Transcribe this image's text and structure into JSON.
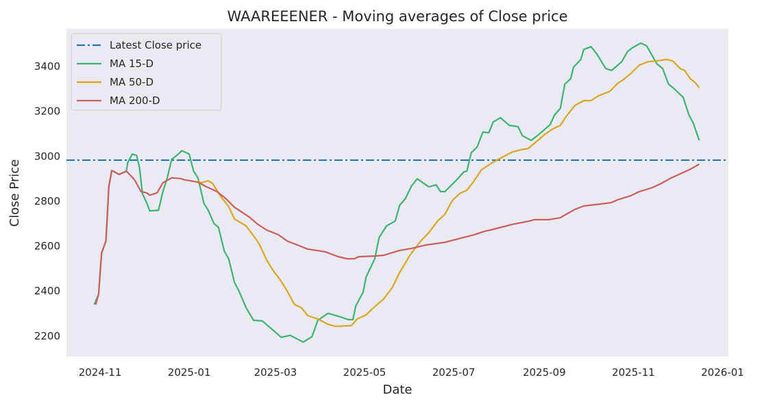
{
  "chart_data": {
    "type": "line",
    "title": "WAAREEENER - Moving averages of Close price",
    "xlabel": "Date",
    "ylabel": "Close Price",
    "xlim": [
      "2024-10-09",
      "2026-01-05"
    ],
    "ylim": [
      2108,
      3568
    ],
    "grid": false,
    "legend_position": "top-left",
    "x_ticks": [
      "2024-11",
      "2025-01",
      "2025-03",
      "2025-05",
      "2025-07",
      "2025-09",
      "2025-11",
      "2026-01"
    ],
    "y_ticks": [
      2200,
      2400,
      2600,
      2800,
      3000,
      3200,
      3400
    ],
    "hlines": [
      {
        "name": "Latest Close price",
        "value": 2983,
        "color": "#1f77b4",
        "style": "dashdot"
      }
    ],
    "series": [
      {
        "name": "MA 15-D",
        "color": "#3cb371",
        "points": [
          [
            "2024-10-28",
            2340
          ],
          [
            "2024-10-31",
            2386
          ],
          [
            "2024-11-02",
            2569
          ],
          [
            "2024-11-05",
            2623
          ],
          [
            "2024-11-07",
            2864
          ],
          [
            "2024-11-09",
            2937
          ],
          [
            "2024-11-14",
            2919
          ],
          [
            "2024-11-19",
            2934
          ],
          [
            "2024-11-20",
            2974
          ],
          [
            "2024-11-23",
            3010
          ],
          [
            "2024-11-26",
            3004
          ],
          [
            "2024-11-28",
            2949
          ],
          [
            "2024-11-30",
            2834
          ],
          [
            "2024-12-03",
            2791
          ],
          [
            "2024-12-05",
            2757
          ],
          [
            "2024-12-11",
            2760
          ],
          [
            "2024-12-14",
            2843
          ],
          [
            "2024-12-17",
            2904
          ],
          [
            "2024-12-20",
            2986
          ],
          [
            "2024-12-24",
            3007
          ],
          [
            "2024-12-27",
            3025
          ],
          [
            "2025-01-01",
            3010
          ],
          [
            "2025-01-04",
            2934
          ],
          [
            "2025-01-07",
            2904
          ],
          [
            "2025-01-11",
            2791
          ],
          [
            "2025-01-14",
            2760
          ],
          [
            "2025-01-18",
            2700
          ],
          [
            "2025-01-21",
            2684
          ],
          [
            "2025-01-25",
            2578
          ],
          [
            "2025-01-28",
            2544
          ],
          [
            "2025-02-01",
            2438
          ],
          [
            "2025-02-04",
            2401
          ],
          [
            "2025-02-09",
            2325
          ],
          [
            "2025-02-14",
            2270
          ],
          [
            "2025-02-20",
            2267
          ],
          [
            "2025-02-26",
            2234
          ],
          [
            "2025-03-05",
            2194
          ],
          [
            "2025-03-11",
            2203
          ],
          [
            "2025-03-20",
            2173
          ],
          [
            "2025-03-26",
            2197
          ],
          [
            "2025-03-30",
            2270
          ],
          [
            "2025-04-06",
            2301
          ],
          [
            "2025-04-13",
            2288
          ],
          [
            "2025-04-20",
            2273
          ],
          [
            "2025-04-23",
            2273
          ],
          [
            "2025-04-25",
            2334
          ],
          [
            "2025-04-30",
            2395
          ],
          [
            "2025-05-02",
            2462
          ],
          [
            "2025-05-08",
            2544
          ],
          [
            "2025-05-11",
            2639
          ],
          [
            "2025-05-16",
            2690
          ],
          [
            "2025-05-22",
            2712
          ],
          [
            "2025-05-25",
            2782
          ],
          [
            "2025-05-29",
            2812
          ],
          [
            "2025-06-02",
            2867
          ],
          [
            "2025-06-06",
            2900
          ],
          [
            "2025-06-14",
            2864
          ],
          [
            "2025-06-19",
            2873
          ],
          [
            "2025-06-22",
            2843
          ],
          [
            "2025-06-25",
            2843
          ],
          [
            "2025-07-03",
            2895
          ],
          [
            "2025-07-08",
            2931
          ],
          [
            "2025-07-10",
            2934
          ],
          [
            "2025-07-13",
            3016
          ],
          [
            "2025-07-17",
            3041
          ],
          [
            "2025-07-21",
            3108
          ],
          [
            "2025-07-25",
            3105
          ],
          [
            "2025-07-28",
            3153
          ],
          [
            "2025-08-02",
            3172
          ],
          [
            "2025-08-08",
            3138
          ],
          [
            "2025-08-14",
            3132
          ],
          [
            "2025-08-17",
            3092
          ],
          [
            "2025-08-23",
            3071
          ],
          [
            "2025-08-28",
            3096
          ],
          [
            "2025-09-05",
            3141
          ],
          [
            "2025-09-08",
            3184
          ],
          [
            "2025-09-12",
            3214
          ],
          [
            "2025-09-15",
            3321
          ],
          [
            "2025-09-19",
            3345
          ],
          [
            "2025-09-21",
            3397
          ],
          [
            "2025-09-26",
            3431
          ],
          [
            "2025-09-28",
            3476
          ],
          [
            "2025-10-03",
            3488
          ],
          [
            "2025-10-07",
            3455
          ],
          [
            "2025-10-13",
            3391
          ],
          [
            "2025-10-17",
            3382
          ],
          [
            "2025-10-24",
            3421
          ],
          [
            "2025-10-28",
            3467
          ],
          [
            "2025-10-31",
            3482
          ],
          [
            "2025-11-06",
            3504
          ],
          [
            "2025-11-10",
            3492
          ],
          [
            "2025-11-13",
            3458
          ],
          [
            "2025-11-17",
            3412
          ],
          [
            "2025-11-21",
            3391
          ],
          [
            "2025-11-25",
            3321
          ],
          [
            "2025-11-28",
            3306
          ],
          [
            "2025-12-03",
            3275
          ],
          [
            "2025-12-05",
            3263
          ],
          [
            "2025-12-09",
            3184
          ],
          [
            "2025-12-12",
            3147
          ],
          [
            "2025-12-16",
            3071
          ]
        ]
      },
      {
        "name": "MA 50-D",
        "color": "#daa520",
        "points": [
          [
            "2025-01-07",
            2890
          ],
          [
            "2025-01-09",
            2882
          ],
          [
            "2025-01-14",
            2891
          ],
          [
            "2025-01-17",
            2879
          ],
          [
            "2025-01-23",
            2818
          ],
          [
            "2025-01-28",
            2776
          ],
          [
            "2025-02-01",
            2721
          ],
          [
            "2025-02-09",
            2690
          ],
          [
            "2025-02-16",
            2629
          ],
          [
            "2025-02-18",
            2608
          ],
          [
            "2025-02-23",
            2538
          ],
          [
            "2025-02-28",
            2486
          ],
          [
            "2025-03-04",
            2453
          ],
          [
            "2025-03-09",
            2401
          ],
          [
            "2025-03-14",
            2340
          ],
          [
            "2025-03-19",
            2325
          ],
          [
            "2025-03-23",
            2291
          ],
          [
            "2025-03-30",
            2276
          ],
          [
            "2025-04-06",
            2252
          ],
          [
            "2025-04-11",
            2243
          ],
          [
            "2025-04-22",
            2246
          ],
          [
            "2025-04-26",
            2276
          ],
          [
            "2025-05-02",
            2294
          ],
          [
            "2025-05-08",
            2331
          ],
          [
            "2025-05-14",
            2364
          ],
          [
            "2025-05-20",
            2416
          ],
          [
            "2025-05-25",
            2483
          ],
          [
            "2025-06-01",
            2559
          ],
          [
            "2025-06-08",
            2620
          ],
          [
            "2025-06-14",
            2660
          ],
          [
            "2025-06-20",
            2712
          ],
          [
            "2025-06-25",
            2742
          ],
          [
            "2025-06-30",
            2803
          ],
          [
            "2025-07-05",
            2834
          ],
          [
            "2025-07-10",
            2849
          ],
          [
            "2025-07-14",
            2882
          ],
          [
            "2025-07-20",
            2940
          ],
          [
            "2025-07-28",
            2974
          ],
          [
            "2025-08-03",
            2995
          ],
          [
            "2025-08-10",
            3019
          ],
          [
            "2025-08-16",
            3029
          ],
          [
            "2025-08-21",
            3035
          ],
          [
            "2025-08-26",
            3062
          ],
          [
            "2025-09-01",
            3096
          ],
          [
            "2025-09-07",
            3123
          ],
          [
            "2025-09-12",
            3138
          ],
          [
            "2025-09-16",
            3178
          ],
          [
            "2025-09-22",
            3227
          ],
          [
            "2025-09-28",
            3248
          ],
          [
            "2025-10-03",
            3248
          ],
          [
            "2025-10-08",
            3269
          ],
          [
            "2025-10-16",
            3290
          ],
          [
            "2025-10-21",
            3324
          ],
          [
            "2025-10-24",
            3336
          ],
          [
            "2025-10-30",
            3367
          ],
          [
            "2025-11-05",
            3406
          ],
          [
            "2025-11-11",
            3421
          ],
          [
            "2025-11-16",
            3424
          ],
          [
            "2025-11-24",
            3431
          ],
          [
            "2025-11-28",
            3424
          ],
          [
            "2025-12-03",
            3391
          ],
          [
            "2025-12-06",
            3382
          ],
          [
            "2025-12-10",
            3345
          ],
          [
            "2025-12-13",
            3330
          ],
          [
            "2025-12-16",
            3306
          ]
        ]
      },
      {
        "name": "MA 200-D",
        "color": "#cd5c5c",
        "points": [
          [
            "2024-10-29",
            2340
          ],
          [
            "2024-10-31",
            2386
          ],
          [
            "2024-11-02",
            2569
          ],
          [
            "2024-11-05",
            2623
          ],
          [
            "2024-11-07",
            2864
          ],
          [
            "2024-11-09",
            2937
          ],
          [
            "2024-11-14",
            2919
          ],
          [
            "2024-11-19",
            2934
          ],
          [
            "2024-11-23",
            2907
          ],
          [
            "2024-11-25",
            2891
          ],
          [
            "2024-11-29",
            2843
          ],
          [
            "2024-12-03",
            2837
          ],
          [
            "2024-12-05",
            2827
          ],
          [
            "2024-12-10",
            2837
          ],
          [
            "2024-12-14",
            2882
          ],
          [
            "2024-12-20",
            2904
          ],
          [
            "2024-12-26",
            2901
          ],
          [
            "2024-12-29",
            2895
          ],
          [
            "2025-01-07",
            2885
          ],
          [
            "2025-01-12",
            2867
          ],
          [
            "2025-01-20",
            2843
          ],
          [
            "2025-01-26",
            2812
          ],
          [
            "2025-02-01",
            2773
          ],
          [
            "2025-02-11",
            2730
          ],
          [
            "2025-02-17",
            2697
          ],
          [
            "2025-02-23",
            2672
          ],
          [
            "2025-03-03",
            2651
          ],
          [
            "2025-03-09",
            2623
          ],
          [
            "2025-03-16",
            2605
          ],
          [
            "2025-03-23",
            2587
          ],
          [
            "2025-04-04",
            2575
          ],
          [
            "2025-04-13",
            2553
          ],
          [
            "2025-04-19",
            2544
          ],
          [
            "2025-04-24",
            2544
          ],
          [
            "2025-04-27",
            2553
          ],
          [
            "2025-05-08",
            2556
          ],
          [
            "2025-05-14",
            2559
          ],
          [
            "2025-05-25",
            2581
          ],
          [
            "2025-06-02",
            2590
          ],
          [
            "2025-06-12",
            2605
          ],
          [
            "2025-06-25",
            2617
          ],
          [
            "2025-07-06",
            2636
          ],
          [
            "2025-07-15",
            2651
          ],
          [
            "2025-07-22",
            2666
          ],
          [
            "2025-07-28",
            2675
          ],
          [
            "2025-08-10",
            2697
          ],
          [
            "2025-08-22",
            2712
          ],
          [
            "2025-08-25",
            2718
          ],
          [
            "2025-09-04",
            2718
          ],
          [
            "2025-09-12",
            2727
          ],
          [
            "2025-09-16",
            2742
          ],
          [
            "2025-09-22",
            2764
          ],
          [
            "2025-09-28",
            2779
          ],
          [
            "2025-10-10",
            2788
          ],
          [
            "2025-10-17",
            2794
          ],
          [
            "2025-10-21",
            2806
          ],
          [
            "2025-10-30",
            2824
          ],
          [
            "2025-11-05",
            2843
          ],
          [
            "2025-11-14",
            2861
          ],
          [
            "2025-11-20",
            2879
          ],
          [
            "2025-11-26",
            2901
          ],
          [
            "2025-11-30",
            2913
          ],
          [
            "2025-12-05",
            2928
          ],
          [
            "2025-12-10",
            2943
          ],
          [
            "2025-12-16",
            2965
          ]
        ]
      }
    ]
  }
}
